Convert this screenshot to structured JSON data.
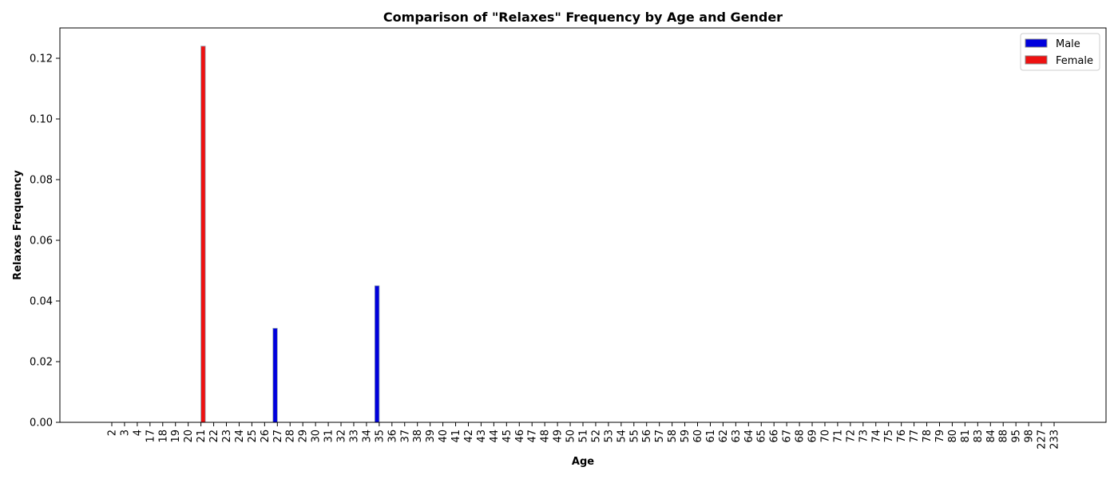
{
  "chart_data": {
    "type": "bar",
    "title": "Comparison of \"Relaxes\" Frequency by Age and Gender",
    "xlabel": "Age",
    "ylabel": "Relaxes Frequency",
    "ylim": [
      0,
      0.13
    ],
    "yticks": [
      "0.00",
      "0.02",
      "0.04",
      "0.06",
      "0.08",
      "0.10",
      "0.12"
    ],
    "grid": false,
    "legend_position": "top-right",
    "categories": [
      "2",
      "3",
      "4",
      "17",
      "18",
      "19",
      "20",
      "21",
      "22",
      "23",
      "24",
      "25",
      "26",
      "27",
      "28",
      "29",
      "30",
      "31",
      "32",
      "33",
      "34",
      "35",
      "36",
      "37",
      "38",
      "39",
      "40",
      "41",
      "42",
      "43",
      "44",
      "45",
      "46",
      "47",
      "48",
      "49",
      "50",
      "51",
      "52",
      "53",
      "54",
      "55",
      "56",
      "57",
      "58",
      "59",
      "60",
      "61",
      "62",
      "63",
      "64",
      "65",
      "66",
      "67",
      "68",
      "69",
      "70",
      "71",
      "72",
      "73",
      "74",
      "75",
      "76",
      "77",
      "78",
      "79",
      "80",
      "81",
      "83",
      "84",
      "88",
      "95",
      "98",
      "227",
      "233"
    ],
    "series": [
      {
        "name": "Male",
        "color": "#0000dd",
        "values": [
          0,
          0,
          0,
          0,
          0,
          0,
          0,
          0,
          0,
          0,
          0,
          0,
          0,
          0.031,
          0,
          0,
          0,
          0,
          0,
          0,
          0,
          0.045,
          0,
          0,
          0,
          0,
          0,
          0,
          0,
          0,
          0,
          0,
          0,
          0,
          0,
          0,
          0,
          0,
          0,
          0,
          0,
          0,
          0,
          0,
          0,
          0,
          0,
          0,
          0,
          0,
          0,
          0,
          0,
          0,
          0,
          0,
          0,
          0,
          0,
          0,
          0,
          0,
          0,
          0,
          0,
          0,
          0,
          0,
          0,
          0,
          0,
          0,
          0,
          0,
          0
        ]
      },
      {
        "name": "Female",
        "color": "#ee1111",
        "values": [
          0,
          0,
          0,
          0,
          0,
          0,
          0,
          0.124,
          0,
          0,
          0,
          0,
          0,
          0,
          0,
          0,
          0,
          0,
          0,
          0,
          0,
          0,
          0,
          0,
          0,
          0,
          0,
          0,
          0,
          0,
          0,
          0,
          0,
          0,
          0,
          0,
          0,
          0,
          0,
          0,
          0,
          0,
          0,
          0,
          0,
          0,
          0,
          0,
          0,
          0,
          0,
          0,
          0,
          0,
          0,
          0,
          0,
          0,
          0,
          0,
          0,
          0,
          0,
          0,
          0,
          0,
          0,
          0,
          0,
          0,
          0,
          0,
          0,
          0,
          0
        ]
      }
    ]
  }
}
